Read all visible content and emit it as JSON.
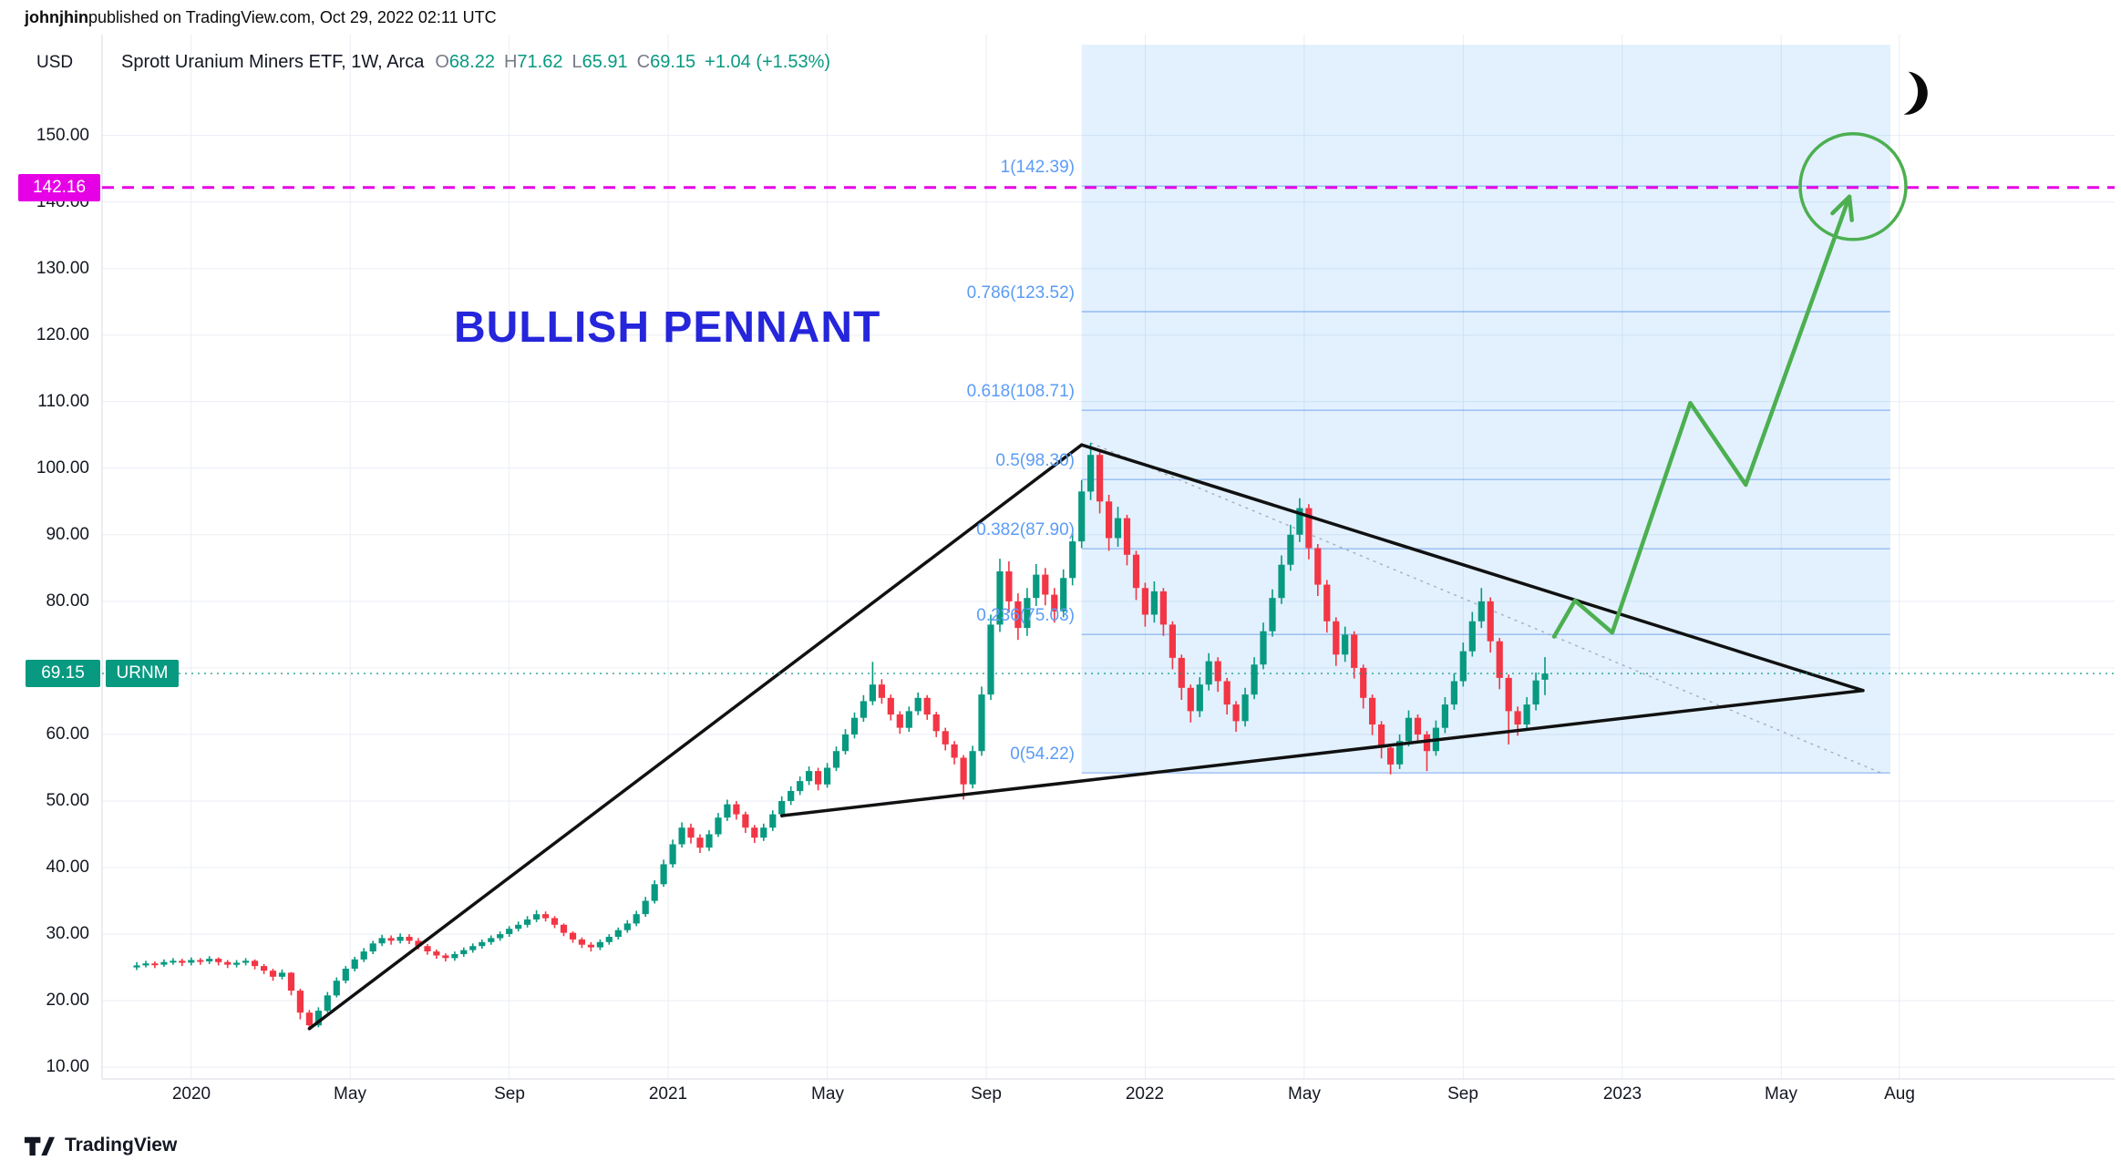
{
  "attribution": {
    "author": "johnjhin",
    "rest": " published on TradingView.com, Oct 29, 2022 02:11 UTC"
  },
  "header": {
    "currency": "USD",
    "title": "Sprott Uranium Miners ETF, 1W, Arca",
    "ohlc": [
      [
        "O",
        "68.22"
      ],
      [
        "H",
        "71.62"
      ],
      [
        "L",
        "65.91"
      ],
      [
        "C",
        "69.15"
      ]
    ],
    "change": "+1.04 (+1.53%)"
  },
  "badges": {
    "alert_price": "142.16",
    "last_price": "69.15",
    "symbol": "URNM"
  },
  "annotation_text": "BULLISH PENNANT",
  "footer": {
    "brand": "TradingView"
  },
  "colors": {
    "up": "#089981",
    "down": "#f23645",
    "magenta": "#e600e6",
    "fib_blue": "#5b9cf6",
    "fib_fill": "rgba(33,150,243,0.13)",
    "fib_line": "rgba(74,134,232,0.5)",
    "projection_green": "#4caf50",
    "pennant_black": "#111111",
    "annotation_blue": "#2525db",
    "grid": "#e9edf4",
    "axis_text": "#131722",
    "label_gray": "#787b86"
  },
  "chart_data": {
    "type": "candlestick",
    "symbol": "URNM",
    "exchange": "Arca",
    "timeframe": "1W",
    "currency": "USD",
    "title": "Sprott Uranium Miners ETF, 1W, Arca",
    "last": {
      "open": 68.22,
      "high": 71.62,
      "low": 65.91,
      "close": 69.15,
      "change": 1.04,
      "change_pct": 1.53
    },
    "ylim": [
      8,
      165
    ],
    "grid": true,
    "price_ticks": [
      {
        "label": "150.00",
        "value": 150
      },
      {
        "label": "140.00",
        "value": 140
      },
      {
        "label": "130.00",
        "value": 130
      },
      {
        "label": "120.00",
        "value": 120
      },
      {
        "label": "110.00",
        "value": 110
      },
      {
        "label": "100.00",
        "value": 100
      },
      {
        "label": "90.00",
        "value": 90
      },
      {
        "label": "80.00",
        "value": 80
      },
      {
        "label": "60.00",
        "value": 60
      },
      {
        "label": "50.00",
        "value": 50
      },
      {
        "label": "40.00",
        "value": 40
      },
      {
        "label": "30.00",
        "value": 30
      },
      {
        "label": "20.00",
        "value": 20
      },
      {
        "label": "10.00",
        "value": 10
      }
    ],
    "time_ticks": [
      {
        "label": "2020",
        "week": 6,
        "major": true
      },
      {
        "label": "May",
        "week": 23.5
      },
      {
        "label": "Sep",
        "week": 41
      },
      {
        "label": "2021",
        "week": 58.5,
        "major": true
      },
      {
        "label": "May",
        "week": 76
      },
      {
        "label": "Sep",
        "week": 93.5
      },
      {
        "label": "2022",
        "week": 111,
        "major": true
      },
      {
        "label": "May",
        "week": 128.5
      },
      {
        "label": "Sep",
        "week": 146
      },
      {
        "label": "2023",
        "week": 163.5,
        "major": true
      },
      {
        "label": "May",
        "week": 181
      },
      {
        "label": "Aug",
        "week": 194
      }
    ],
    "candles": [
      [
        25.0,
        25.8,
        24.6,
        25.3
      ],
      [
        25.3,
        26.0,
        25.0,
        25.6
      ],
      [
        25.6,
        25.9,
        24.9,
        25.4
      ],
      [
        25.4,
        26.2,
        25.1,
        25.8
      ],
      [
        25.8,
        26.4,
        25.4,
        26.0
      ],
      [
        26.0,
        26.3,
        25.2,
        25.7
      ],
      [
        25.7,
        26.5,
        25.3,
        26.1
      ],
      [
        26.1,
        26.4,
        25.4,
        25.9
      ],
      [
        25.9,
        26.7,
        25.5,
        26.3
      ],
      [
        26.3,
        26.5,
        25.3,
        25.8
      ],
      [
        25.8,
        26.1,
        24.9,
        25.4
      ],
      [
        25.4,
        26.1,
        25.0,
        25.7
      ],
      [
        25.7,
        26.4,
        25.3,
        26.0
      ],
      [
        26.0,
        26.2,
        24.7,
        25.2
      ],
      [
        25.2,
        25.5,
        24.0,
        24.5
      ],
      [
        24.5,
        24.8,
        23.0,
        23.6
      ],
      [
        23.6,
        24.7,
        23.2,
        24.2
      ],
      [
        24.2,
        24.3,
        20.8,
        21.5
      ],
      [
        21.5,
        21.8,
        17.2,
        18.2
      ],
      [
        18.2,
        18.6,
        15.6,
        16.3
      ],
      [
        16.3,
        19.0,
        16.0,
        18.5
      ],
      [
        18.5,
        21.3,
        18.2,
        20.8
      ],
      [
        20.8,
        23.5,
        20.5,
        23.0
      ],
      [
        23.0,
        25.2,
        22.6,
        24.8
      ],
      [
        24.8,
        26.6,
        24.4,
        26.2
      ],
      [
        26.2,
        27.9,
        25.8,
        27.4
      ],
      [
        27.4,
        29.0,
        27.0,
        28.6
      ],
      [
        28.6,
        29.9,
        28.2,
        29.4
      ],
      [
        29.4,
        29.8,
        28.4,
        29.0
      ],
      [
        29.0,
        30.1,
        28.6,
        29.6
      ],
      [
        29.6,
        30.0,
        28.5,
        29.0
      ],
      [
        29.0,
        29.4,
        27.7,
        28.2
      ],
      [
        28.2,
        28.5,
        26.9,
        27.4
      ],
      [
        27.4,
        27.7,
        26.3,
        26.8
      ],
      [
        26.8,
        27.1,
        25.9,
        26.4
      ],
      [
        26.4,
        27.4,
        26.0,
        27.0
      ],
      [
        27.0,
        28.0,
        26.6,
        27.6
      ],
      [
        27.6,
        28.6,
        27.2,
        28.2
      ],
      [
        28.2,
        29.2,
        27.8,
        28.8
      ],
      [
        28.8,
        29.8,
        28.4,
        29.4
      ],
      [
        29.4,
        30.4,
        29.0,
        30.0
      ],
      [
        30.0,
        31.2,
        29.6,
        30.8
      ],
      [
        30.8,
        31.9,
        30.4,
        31.4
      ],
      [
        31.4,
        32.7,
        31.0,
        32.2
      ],
      [
        32.2,
        33.6,
        31.8,
        33.0
      ],
      [
        33.0,
        33.4,
        31.9,
        32.4
      ],
      [
        32.4,
        32.7,
        30.9,
        31.4
      ],
      [
        31.4,
        31.6,
        29.7,
        30.2
      ],
      [
        30.2,
        30.4,
        28.7,
        29.2
      ],
      [
        29.2,
        29.5,
        27.9,
        28.4
      ],
      [
        28.4,
        28.8,
        27.4,
        28.0
      ],
      [
        28.0,
        29.2,
        27.6,
        28.8
      ],
      [
        28.8,
        30.0,
        28.4,
        29.6
      ],
      [
        29.6,
        31.0,
        29.2,
        30.6
      ],
      [
        30.6,
        32.1,
        30.2,
        31.6
      ],
      [
        31.6,
        33.5,
        31.2,
        33.0
      ],
      [
        33.0,
        35.6,
        32.6,
        35.0
      ],
      [
        35.0,
        38.1,
        34.6,
        37.5
      ],
      [
        37.5,
        41.2,
        37.1,
        40.5
      ],
      [
        40.5,
        44.2,
        40.0,
        43.5
      ],
      [
        43.5,
        46.8,
        43.0,
        46.0
      ],
      [
        46.0,
        46.6,
        43.6,
        44.5
      ],
      [
        44.5,
        45.0,
        42.2,
        43.0
      ],
      [
        43.0,
        45.6,
        42.5,
        45.0
      ],
      [
        45.0,
        48.2,
        44.6,
        47.5
      ],
      [
        47.5,
        50.2,
        47.0,
        49.5
      ],
      [
        49.5,
        50.0,
        47.2,
        48.0
      ],
      [
        48.0,
        48.4,
        45.2,
        46.0
      ],
      [
        46.0,
        46.4,
        43.7,
        44.5
      ],
      [
        44.5,
        46.6,
        44.0,
        46.0
      ],
      [
        46.0,
        48.6,
        45.5,
        48.0
      ],
      [
        48.0,
        50.7,
        47.5,
        50.0
      ],
      [
        50.0,
        52.2,
        49.4,
        51.5
      ],
      [
        51.5,
        53.7,
        50.9,
        53.0
      ],
      [
        53.0,
        55.2,
        52.4,
        54.5
      ],
      [
        54.5,
        55.0,
        51.6,
        52.5
      ],
      [
        52.5,
        55.7,
        52.0,
        55.0
      ],
      [
        55.0,
        58.2,
        54.5,
        57.5
      ],
      [
        57.5,
        60.8,
        57.0,
        60.0
      ],
      [
        60.0,
        63.3,
        59.4,
        62.5
      ],
      [
        62.5,
        65.9,
        61.9,
        65.0
      ],
      [
        65.0,
        70.9,
        64.4,
        67.5
      ],
      [
        67.5,
        68.3,
        64.6,
        65.5
      ],
      [
        65.5,
        66.0,
        62.1,
        63.0
      ],
      [
        63.0,
        63.5,
        60.1,
        61.0
      ],
      [
        61.0,
        64.2,
        60.4,
        63.5
      ],
      [
        63.5,
        66.3,
        62.9,
        65.5
      ],
      [
        65.5,
        65.9,
        62.2,
        63.0
      ],
      [
        63.0,
        63.4,
        59.6,
        60.5
      ],
      [
        60.5,
        61.0,
        57.6,
        58.5
      ],
      [
        58.5,
        59.0,
        55.5,
        56.5
      ],
      [
        56.5,
        56.9,
        50.2,
        52.5
      ],
      [
        52.5,
        58.3,
        51.9,
        57.5
      ],
      [
        57.5,
        67.2,
        56.8,
        66.0
      ],
      [
        66.0,
        78.0,
        65.2,
        76.5
      ],
      [
        76.5,
        86.4,
        75.4,
        84.5
      ],
      [
        84.5,
        86.0,
        78.3,
        80.0
      ],
      [
        80.0,
        81.2,
        74.2,
        76.0
      ],
      [
        76.0,
        82.0,
        74.8,
        80.5
      ],
      [
        80.5,
        85.6,
        79.3,
        84.0
      ],
      [
        84.0,
        85.0,
        79.4,
        81.0
      ],
      [
        81.0,
        82.0,
        76.8,
        78.5
      ],
      [
        78.5,
        84.8,
        77.6,
        83.5
      ],
      [
        83.5,
        90.4,
        82.4,
        89.0
      ],
      [
        89.0,
        98.2,
        88.0,
        96.5
      ],
      [
        96.5,
        103.8,
        95.2,
        102.0
      ],
      [
        102.0,
        102.8,
        93.2,
        95.0
      ],
      [
        95.0,
        96.0,
        87.6,
        89.5
      ],
      [
        89.5,
        94.2,
        88.2,
        92.5
      ],
      [
        92.5,
        93.0,
        85.4,
        87.0
      ],
      [
        87.0,
        87.6,
        80.2,
        82.0
      ],
      [
        82.0,
        82.8,
        76.2,
        78.0
      ],
      [
        78.0,
        83.0,
        76.8,
        81.5
      ],
      [
        81.5,
        82.0,
        74.8,
        76.5
      ],
      [
        76.5,
        77.0,
        69.8,
        71.5
      ],
      [
        71.5,
        72.0,
        65.2,
        67.0
      ],
      [
        67.0,
        67.5,
        61.8,
        63.5
      ],
      [
        63.5,
        68.6,
        62.6,
        67.5
      ],
      [
        67.5,
        72.2,
        66.6,
        71.0
      ],
      [
        71.0,
        71.6,
        66.4,
        68.0
      ],
      [
        68.0,
        68.5,
        63.0,
        64.5
      ],
      [
        64.5,
        65.0,
        60.4,
        62.0
      ],
      [
        62.0,
        67.0,
        61.2,
        66.0
      ],
      [
        66.0,
        71.6,
        65.3,
        70.5
      ],
      [
        70.5,
        76.8,
        69.8,
        75.5
      ],
      [
        75.5,
        81.8,
        74.7,
        80.5
      ],
      [
        80.5,
        86.9,
        79.6,
        85.5
      ],
      [
        85.5,
        91.5,
        84.6,
        90.0
      ],
      [
        90.0,
        95.5,
        88.9,
        94.0
      ],
      [
        94.0,
        94.6,
        86.3,
        88.0
      ],
      [
        88.0,
        88.6,
        80.8,
        82.5
      ],
      [
        82.5,
        83.2,
        75.3,
        77.0
      ],
      [
        77.0,
        77.6,
        70.3,
        72.0
      ],
      [
        72.0,
        76.2,
        70.9,
        75.0
      ],
      [
        75.0,
        75.5,
        68.4,
        70.0
      ],
      [
        70.0,
        70.5,
        63.9,
        65.5
      ],
      [
        65.5,
        66.0,
        59.9,
        61.5
      ],
      [
        61.5,
        62.0,
        56.4,
        58.0
      ],
      [
        58.0,
        58.5,
        54.0,
        55.5
      ],
      [
        55.5,
        60.0,
        54.8,
        59.0
      ],
      [
        59.0,
        63.6,
        58.2,
        62.5
      ],
      [
        62.5,
        63.0,
        58.7,
        60.0
      ],
      [
        60.0,
        60.5,
        54.5,
        57.5
      ],
      [
        57.5,
        62.1,
        56.8,
        61.0
      ],
      [
        61.0,
        65.6,
        60.2,
        64.5
      ],
      [
        64.5,
        69.2,
        63.7,
        68.0
      ],
      [
        68.0,
        73.8,
        67.2,
        72.5
      ],
      [
        72.5,
        78.4,
        71.7,
        77.0
      ],
      [
        77.0,
        82.0,
        76.0,
        80.0
      ],
      [
        80.0,
        80.6,
        72.3,
        74.0
      ],
      [
        74.0,
        74.5,
        66.8,
        68.5
      ],
      [
        68.5,
        69.0,
        58.5,
        63.5
      ],
      [
        63.5,
        64.2,
        59.8,
        61.5
      ],
      [
        61.5,
        65.6,
        60.7,
        64.5
      ],
      [
        64.5,
        69.3,
        63.6,
        68.11
      ],
      [
        68.22,
        71.62,
        65.91,
        69.15
      ]
    ],
    "fib": {
      "zone_week_start": 104,
      "zone_week_end": 193,
      "levels": [
        {
          "label": "1(142.39)",
          "value": 142.39
        },
        {
          "label": "0.786(123.52)",
          "value": 123.52
        },
        {
          "label": "0.618(108.71)",
          "value": 108.71
        },
        {
          "label": "0.5(98.30)",
          "value": 98.3
        },
        {
          "label": "0.382(87.90)",
          "value": 87.9
        },
        {
          "label": "0.236(75.03)",
          "value": 75.03
        },
        {
          "label": "0(54.22)",
          "value": 54.22
        }
      ],
      "baseline": {
        "from": [
          105,
          103.8
        ],
        "to": [
          192,
          54.22
        ]
      }
    },
    "pennant": [
      {
        "from": [
          19,
          15.8
        ],
        "to": [
          104,
          103.5
        ]
      },
      {
        "from": [
          104,
          103.5
        ],
        "to": [
          190,
          66.6
        ]
      },
      {
        "from": [
          71,
          47.8
        ],
        "to": [
          190,
          66.6
        ]
      }
    ],
    "projection": {
      "points": [
        [
          156,
          74.7
        ],
        [
          158.3,
          80.1
        ],
        [
          162.4,
          75.3
        ],
        [
          171,
          109.8
        ],
        [
          177.1,
          97.5
        ],
        [
          188.5,
          140.8
        ]
      ]
    },
    "target_circle": {
      "week": 188.9,
      "price": 142.3,
      "r": 58
    },
    "alert_line": {
      "price": 142.16
    },
    "last_price_line": {
      "price": 69.15
    }
  }
}
